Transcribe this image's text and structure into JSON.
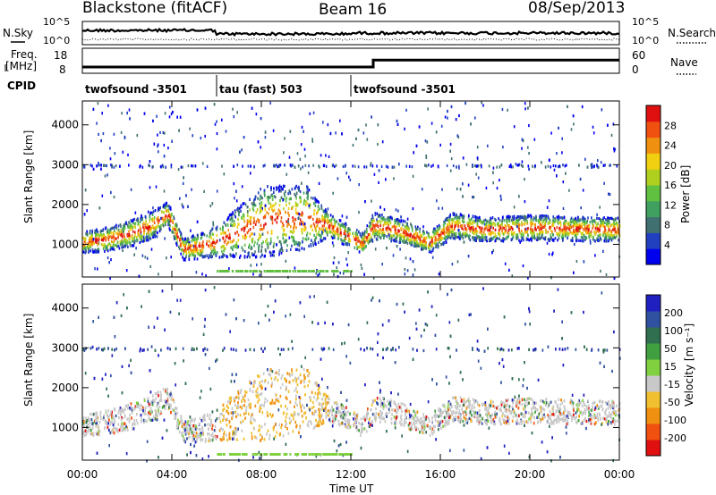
{
  "chart_data": [
    {
      "type": "line",
      "title": "Blackstone (fitACF)",
      "subtitle": "Beam 16",
      "date": "08/Sep/2013",
      "left_label": "N.Sky",
      "right_label": "N.Search",
      "y_ticks_left": [
        "10^5",
        "10^0"
      ],
      "y_ticks_right": [
        "10^5",
        "10^0"
      ]
    },
    {
      "type": "line",
      "left_label_line1": "Freq.",
      "left_label_line2": "[MHz]",
      "right_label": "Nave",
      "y_ticks_left": [
        "18",
        "8"
      ],
      "y_ticks_right": [
        "60",
        "0"
      ],
      "freq_steps": [
        {
          "from": "00:00",
          "to": "13:00",
          "value": 10.5
        },
        {
          "from": "13:00",
          "to": "24:00",
          "value": 13.3
        }
      ]
    },
    {
      "type": "table",
      "label": "CPID",
      "segments": [
        {
          "label": "twofsound -3501",
          "start": "00:00",
          "end": "06:00"
        },
        {
          "label": "tau (fast) 503",
          "start": "06:00",
          "end": "12:00"
        },
        {
          "label": "twofsound -3501",
          "start": "12:00",
          "end": "24:00"
        }
      ]
    },
    {
      "type": "heatmap",
      "ylabel": "Slant Range [km]",
      "colorbar_label": "Power [dB]",
      "colorbar_ticks": [
        "28",
        "24",
        "20",
        "16",
        "12",
        "8",
        "4"
      ],
      "colors": [
        "#0000ee",
        "#2040c0",
        "#407070",
        "#40a060",
        "#60c040",
        "#b0d020",
        "#f0d010",
        "#f09010",
        "#f05010",
        "#e01010"
      ],
      "y_ticks": [
        "4000",
        "3000",
        "2000",
        "1000"
      ],
      "ylim": [
        180,
        4600
      ],
      "band": [
        {
          "t": 0,
          "center": 1080,
          "width": 260
        },
        {
          "t": 1,
          "center": 1150,
          "width": 300
        },
        {
          "t": 2,
          "center": 1280,
          "width": 320
        },
        {
          "t": 3,
          "center": 1480,
          "width": 340
        },
        {
          "t": 3.8,
          "center": 1800,
          "width": 300
        },
        {
          "t": 4.5,
          "center": 900,
          "width": 260
        },
        {
          "t": 6,
          "center": 1100,
          "width": 400
        },
        {
          "t": 8,
          "center": 1600,
          "width": 900
        },
        {
          "t": 10,
          "center": 1700,
          "width": 800
        },
        {
          "t": 11,
          "center": 1500,
          "width": 300
        },
        {
          "t": 12.5,
          "center": 1050,
          "width": 260
        },
        {
          "t": 13,
          "center": 1500,
          "width": 340
        },
        {
          "t": 14,
          "center": 1400,
          "width": 300
        },
        {
          "t": 15.5,
          "center": 1080,
          "width": 260
        },
        {
          "t": 16.5,
          "center": 1500,
          "width": 320
        },
        {
          "t": 18,
          "center": 1400,
          "width": 300
        },
        {
          "t": 20,
          "center": 1450,
          "width": 320
        },
        {
          "t": 22,
          "center": 1420,
          "width": 300
        },
        {
          "t": 24,
          "center": 1400,
          "width": 300
        }
      ]
    },
    {
      "type": "heatmap",
      "ylabel": "Slant Range [km]",
      "colorbar_label": "Velocity [m s⁻¹]",
      "colorbar_ticks": [
        "200",
        "100",
        "50",
        "15",
        "-15",
        "-50",
        "-100",
        "-200"
      ],
      "colors": [
        "#2020c0",
        "#3050a0",
        "#307050",
        "#40a040",
        "#80d040",
        "#c8c8c8",
        "#f0c030",
        "#f09010",
        "#f05010",
        "#e01010"
      ],
      "y_ticks": [
        "4000",
        "3000",
        "2000",
        "1000"
      ],
      "ylim": [
        180,
        4600
      ],
      "xlabel": "Time UT",
      "x_ticks": [
        "00:00",
        "04:00",
        "08:00",
        "12:00",
        "16:00",
        "20:00",
        "00:00"
      ]
    }
  ]
}
